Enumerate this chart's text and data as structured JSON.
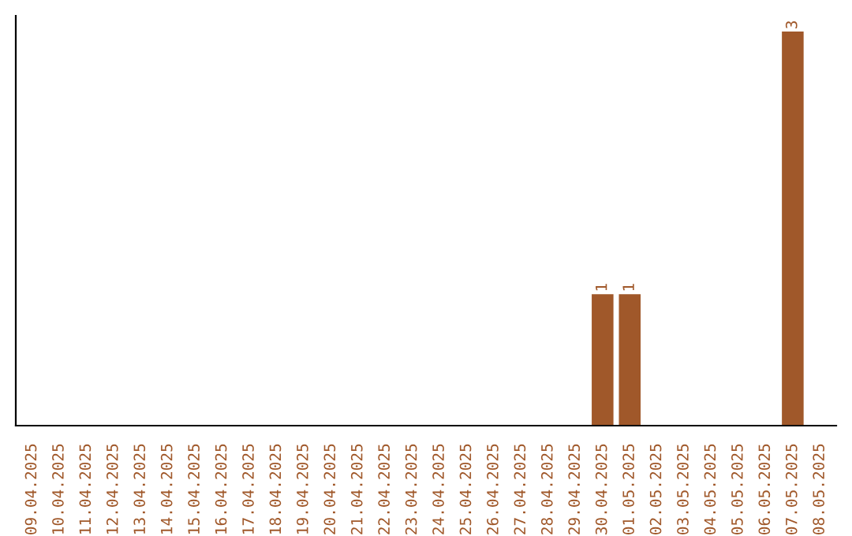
{
  "chart_data": {
    "type": "bar",
    "categories": [
      "09.04.2025",
      "10.04.2025",
      "11.04.2025",
      "12.04.2025",
      "13.04.2025",
      "14.04.2025",
      "15.04.2025",
      "16.04.2025",
      "17.04.2025",
      "18.04.2025",
      "19.04.2025",
      "20.04.2025",
      "21.04.2025",
      "22.04.2025",
      "23.04.2025",
      "24.04.2025",
      "25.04.2025",
      "26.04.2025",
      "27.04.2025",
      "28.04.2025",
      "29.04.2025",
      "30.04.2025",
      "01.05.2025",
      "02.05.2025",
      "03.05.2025",
      "04.05.2025",
      "05.05.2025",
      "06.05.2025",
      "07.05.2025",
      "08.05.2025"
    ],
    "values": [
      null,
      null,
      null,
      null,
      null,
      null,
      null,
      null,
      null,
      null,
      null,
      null,
      null,
      null,
      null,
      null,
      null,
      null,
      null,
      null,
      null,
      1,
      1,
      null,
      null,
      null,
      null,
      null,
      3,
      null
    ],
    "value_labels": [
      null,
      null,
      null,
      null,
      null,
      null,
      null,
      null,
      null,
      null,
      null,
      null,
      null,
      null,
      null,
      null,
      null,
      null,
      null,
      null,
      null,
      "1",
      "1",
      null,
      null,
      null,
      null,
      null,
      "3",
      null
    ],
    "color": "#a0582a",
    "grid": false,
    "legend": false
  }
}
